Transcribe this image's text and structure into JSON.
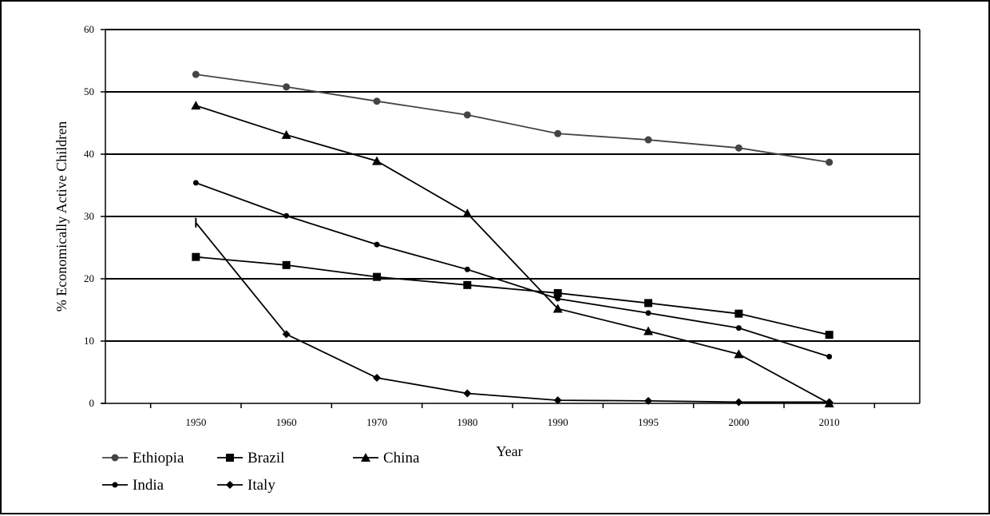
{
  "chart_data": {
    "type": "line",
    "title": "",
    "xlabel": "Year",
    "ylabel": "% Economically Active Children",
    "categories": [
      "1950",
      "1960",
      "1970",
      "1980",
      "1990",
      "1995",
      "2000",
      "2010"
    ],
    "ylim": [
      0,
      60
    ],
    "yticks": [
      0,
      10,
      20,
      30,
      40,
      50,
      60
    ],
    "grid": true,
    "legend_position": "bottom-left",
    "series": [
      {
        "name": "Ethiopia",
        "marker": "circle",
        "color": "#444444",
        "values": [
          52.8,
          50.8,
          48.5,
          46.3,
          43.3,
          42.3,
          41.0,
          38.7
        ]
      },
      {
        "name": "Brazil",
        "marker": "square",
        "color": "#000000",
        "values": [
          23.5,
          22.2,
          20.3,
          19.0,
          17.7,
          16.1,
          14.4,
          11.0
        ]
      },
      {
        "name": "China",
        "marker": "triangle",
        "color": "#000000",
        "values": [
          47.8,
          43.1,
          38.9,
          30.5,
          15.2,
          11.6,
          7.9,
          0.0
        ]
      },
      {
        "name": "India",
        "marker": "dot",
        "color": "#000000",
        "values": [
          35.4,
          30.1,
          25.5,
          21.5,
          16.8,
          14.5,
          12.1,
          7.5
        ]
      },
      {
        "name": "Italy",
        "marker": "diamond",
        "color": "#000000",
        "values": [
          29.0,
          11.1,
          4.1,
          1.6,
          0.5,
          0.4,
          0.2,
          0.2
        ]
      }
    ]
  }
}
